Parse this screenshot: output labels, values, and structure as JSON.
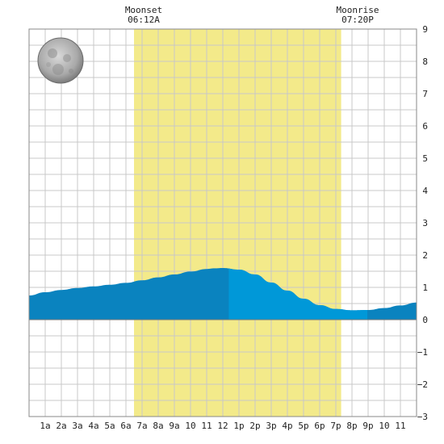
{
  "chart_data": {
    "type": "area",
    "title": "",
    "xlabel": "",
    "ylabel": "",
    "x_ticks": [
      "1a",
      "2a",
      "3a",
      "4a",
      "5a",
      "6a",
      "7a",
      "8a",
      "9a",
      "10",
      "11",
      "12",
      "1p",
      "2p",
      "3p",
      "4p",
      "5p",
      "6p",
      "7p",
      "8p",
      "9p",
      "10",
      "11"
    ],
    "y_ticks": [
      "9",
      "8",
      "7",
      "6",
      "5",
      "4",
      "3",
      "2",
      "1",
      "0",
      "−1",
      "−2",
      "−3"
    ],
    "xlim": [
      0,
      24
    ],
    "ylim": [
      -3,
      9
    ],
    "grid": true,
    "daylight": {
      "start": 6.5,
      "end": 19.33
    },
    "series": [
      {
        "x": [
          0,
          1,
          2,
          3,
          4,
          5,
          6,
          7,
          8,
          9,
          10,
          11,
          11.5,
          12,
          13,
          14,
          15,
          16,
          17,
          18,
          19,
          20,
          21,
          22,
          23,
          24
        ],
        "y": [
          0.75,
          0.85,
          0.92,
          0.98,
          1.03,
          1.08,
          1.14,
          1.22,
          1.31,
          1.4,
          1.49,
          1.57,
          1.59,
          1.6,
          1.55,
          1.4,
          1.15,
          0.9,
          0.65,
          0.45,
          0.33,
          0.29,
          0.3,
          0.36,
          0.44,
          0.53
        ]
      }
    ],
    "colors": {
      "daylight": "#f3ea8a",
      "fill_dark": "#0a83bf",
      "fill_light": "#0098d8",
      "grid": "#c8c8c8",
      "border": "#888888"
    }
  },
  "annotations": {
    "moonset": {
      "label": "Moonset",
      "time": "06:12A"
    },
    "moonrise": {
      "label": "Moonrise",
      "time": "07:20P"
    }
  },
  "moon_phase_icon": "full-moon-icon"
}
